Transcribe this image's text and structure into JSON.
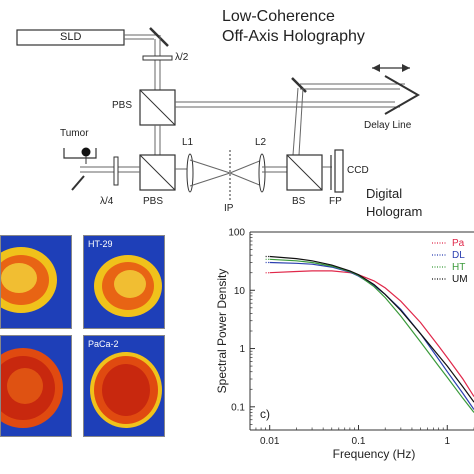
{
  "diagram": {
    "title_line1": "Low-Coherence",
    "title_line2": "Off-Axis Holography",
    "labels": {
      "sld": "SLD",
      "half_wave": "λ/2",
      "pbs_top": "PBS",
      "tumor": "Tumor",
      "quarter_wave": "λ/4",
      "pbs_bottom": "PBS",
      "l1": "L1",
      "l2": "L2",
      "ip": "IP",
      "bs": "BS",
      "fp": "FP",
      "ccd": "CCD",
      "delay_line": "Delay Line",
      "digital_hologram_1": "Digital",
      "digital_hologram_2": "Hologram"
    }
  },
  "image_panels": [
    {
      "label": ""
    },
    {
      "label": "HT-29"
    },
    {
      "label": ""
    },
    {
      "label": "PaCa-2"
    }
  ],
  "chart_data": {
    "type": "line",
    "panel_label": "c)",
    "xlabel": "Frequency (Hz)",
    "ylabel": "Spectral Power Density",
    "xscale": "log",
    "yscale": "log",
    "xlim": [
      0.006,
      2.0
    ],
    "ylim": [
      0.04,
      100
    ],
    "xticks": [
      "0.01",
      "0.1",
      "1"
    ],
    "yticks": [
      "100",
      "10",
      "1",
      "0.1"
    ],
    "legend_position": "top-right",
    "legend_entries": [
      "Pa",
      "DL",
      "HT",
      "UM"
    ],
    "x": [
      0.01,
      0.02,
      0.03,
      0.05,
      0.08,
      0.1,
      0.15,
      0.2,
      0.3,
      0.5,
      0.8,
      1.0,
      1.5,
      2.0
    ],
    "series": [
      {
        "name": "Pa",
        "color": "#e0284a",
        "values": [
          20,
          21,
          21.5,
          21.5,
          20,
          18.5,
          14.5,
          11,
          6.5,
          2.8,
          1.1,
          0.7,
          0.3,
          0.15
        ]
      },
      {
        "name": "DL",
        "color": "#2b3fb0",
        "values": [
          30,
          29,
          28,
          25,
          20.5,
          17.5,
          12,
          8.5,
          4.7,
          1.8,
          0.65,
          0.4,
          0.17,
          0.09
        ]
      },
      {
        "name": "HT",
        "color": "#3a9a3a",
        "values": [
          34,
          32,
          30,
          26,
          21,
          18,
          11.5,
          7.5,
          3.6,
          1.3,
          0.5,
          0.32,
          0.14,
          0.08
        ]
      },
      {
        "name": "UM",
        "color": "#111111",
        "values": [
          38,
          35,
          32,
          27,
          21.5,
          18.5,
          12.5,
          8.5,
          4.5,
          1.8,
          0.75,
          0.5,
          0.22,
          0.12
        ]
      }
    ]
  }
}
